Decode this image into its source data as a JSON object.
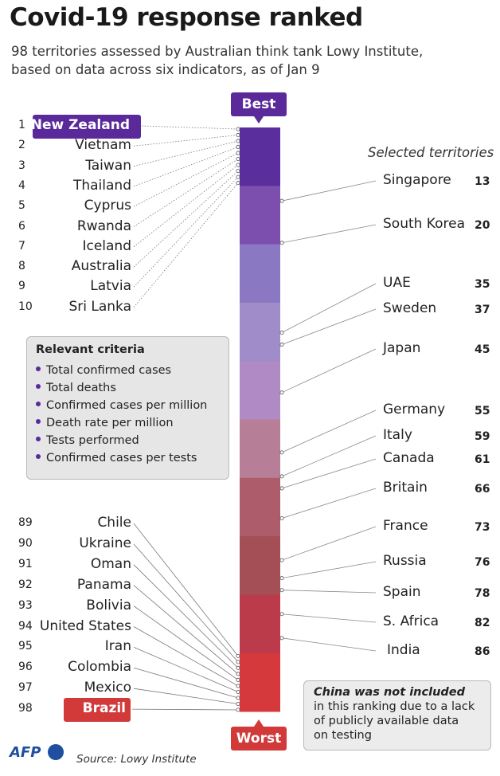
{
  "chart_data": {
    "type": "ranked-scale",
    "title": "Covid-19 response ranked",
    "subtitle_lines": [
      "98 territories assessed by Australian think tank Lowy Institute,",
      "based on data across six indicators, as of Jan 9"
    ],
    "scale": {
      "top_label": "Best",
      "bottom_label": "Worst",
      "min_rank": 1,
      "max_rank": 98,
      "band_colors": [
        "#5a2e9c",
        "#7c4fae",
        "#8b78c2",
        "#9f8cc8",
        "#b08ac4",
        "#b77e98",
        "#ac5c6a",
        "#a34f55",
        "#bb3b4a",
        "#d6393c"
      ]
    },
    "top_ten": [
      {
        "rank": 1,
        "name": "New Zealand"
      },
      {
        "rank": 2,
        "name": "Vietnam"
      },
      {
        "rank": 3,
        "name": "Taiwan"
      },
      {
        "rank": 4,
        "name": "Thailand"
      },
      {
        "rank": 5,
        "name": "Cyprus"
      },
      {
        "rank": 6,
        "name": "Rwanda"
      },
      {
        "rank": 7,
        "name": "Iceland"
      },
      {
        "rank": 8,
        "name": "Australia"
      },
      {
        "rank": 9,
        "name": "Latvia"
      },
      {
        "rank": 10,
        "name": "Sri Lanka"
      }
    ],
    "bottom_ten": [
      {
        "rank": 89,
        "name": "Chile"
      },
      {
        "rank": 90,
        "name": "Ukraine"
      },
      {
        "rank": 91,
        "name": "Oman"
      },
      {
        "rank": 92,
        "name": "Panama"
      },
      {
        "rank": 93,
        "name": "Bolivia"
      },
      {
        "rank": 94,
        "name": "United States"
      },
      {
        "rank": 95,
        "name": "Iran"
      },
      {
        "rank": 96,
        "name": "Colombia"
      },
      {
        "rank": 97,
        "name": "Mexico"
      },
      {
        "rank": 98,
        "name": "Brazil"
      }
    ],
    "selected_title": "Selected territories",
    "selected": [
      {
        "name": "Singapore",
        "rank": 13
      },
      {
        "name": "South Korea",
        "rank": 20
      },
      {
        "name": "UAE",
        "rank": 35
      },
      {
        "name": "Sweden",
        "rank": 37
      },
      {
        "name": "Japan",
        "rank": 45
      },
      {
        "name": "Germany",
        "rank": 55
      },
      {
        "name": "Italy",
        "rank": 59
      },
      {
        "name": "Canada",
        "rank": 61
      },
      {
        "name": "Britain",
        "rank": 66
      },
      {
        "name": "France",
        "rank": 73
      },
      {
        "name": "Russia",
        "rank": 76
      },
      {
        "name": "Spain",
        "rank": 78
      },
      {
        "name": "S. Africa",
        "rank": 82
      },
      {
        "name": "India",
        "rank": 86
      }
    ],
    "criteria_title": "Relevant criteria",
    "criteria": [
      "Total confirmed cases",
      "Total deaths",
      "Confirmed cases per million",
      "Death rate per million",
      "Tests performed",
      "Confirmed cases per tests"
    ],
    "note_lines": [
      "China was not included",
      "in this ranking due to a lack",
      "of publicly available data",
      "on testing"
    ],
    "source": "Source: Lowy Institute",
    "logo": "AFP"
  }
}
